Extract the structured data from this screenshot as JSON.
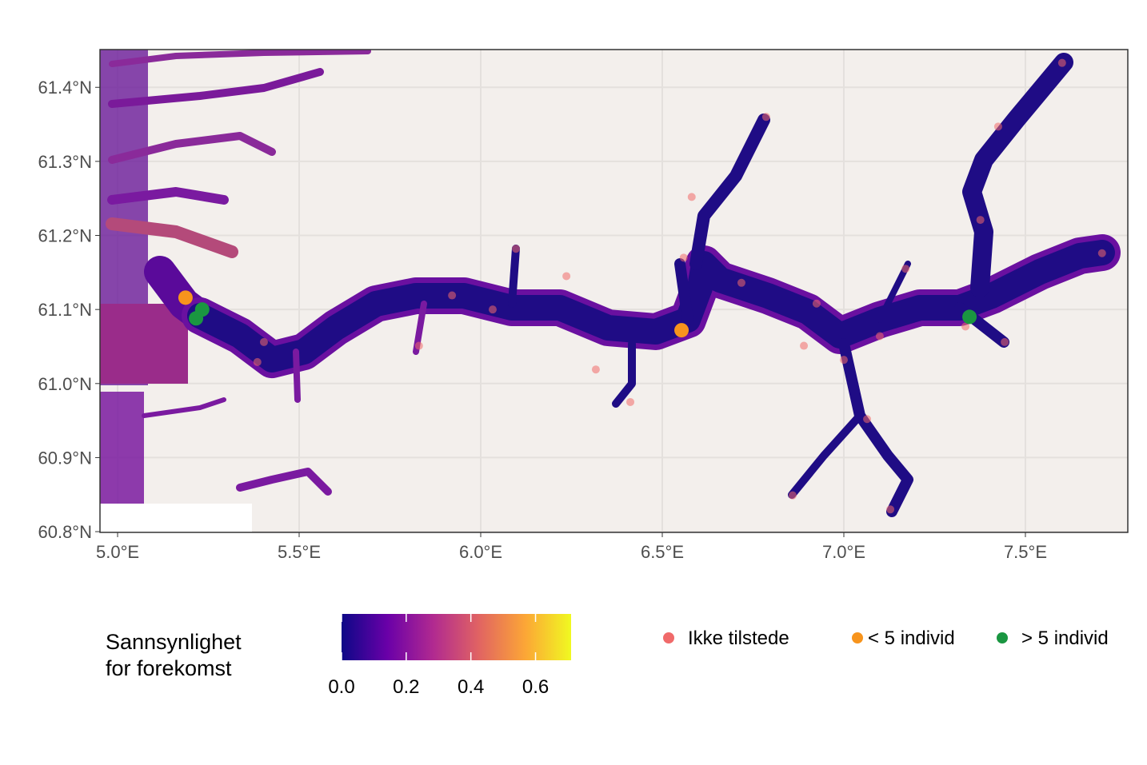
{
  "map": {
    "xlim": [
      4.9515,
      7.782
    ],
    "ylim": [
      60.799,
      61.451
    ],
    "xticks": [
      {
        "value": 5.0,
        "label": "5.0°E"
      },
      {
        "value": 5.5,
        "label": "5.5°E"
      },
      {
        "value": 6.0,
        "label": "6.0°E"
      },
      {
        "value": 6.5,
        "label": "6.5°E"
      },
      {
        "value": 7.0,
        "label": "7.0°E"
      },
      {
        "value": 7.5,
        "label": "7.5°E"
      }
    ],
    "yticks": [
      {
        "value": 60.8,
        "label": "60.8°N"
      },
      {
        "value": 60.9,
        "label": "60.9°N"
      },
      {
        "value": 61.0,
        "label": "61.0°N"
      },
      {
        "value": 61.1,
        "label": "61.1°N"
      },
      {
        "value": 61.2,
        "label": "61.2°N"
      },
      {
        "value": 61.3,
        "label": "61.3°N"
      },
      {
        "value": 61.4,
        "label": "61.4°N"
      }
    ],
    "grid": true,
    "colorbar": {
      "title_lines": [
        "Sannsynlighet",
        "for forekomst"
      ],
      "lim": [
        0,
        0.71
      ],
      "ticks": [
        {
          "value": 0,
          "label": "0.0"
        },
        0.2,
        0.4,
        0.6
      ],
      "colors": [
        "#0d0887",
        "#6a00a8",
        "#b12a90",
        "#e16462",
        "#fca636",
        "#f0f921"
      ]
    },
    "legend": [
      {
        "name": "Ikke tilstede",
        "color": "#f06a6a",
        "points": [
          [
            7.601,
            61.433
          ],
          [
            6.786,
            61.36
          ],
          [
            7.425,
            61.347
          ],
          [
            6.581,
            61.252
          ],
          [
            6.559,
            61.17
          ],
          [
            6.097,
            61.182
          ],
          [
            7.711,
            61.176
          ],
          [
            7.17,
            61.155
          ],
          [
            6.718,
            61.136
          ],
          [
            5.921,
            61.119
          ],
          [
            6.033,
            61.1
          ],
          [
            6.236,
            61.145
          ],
          [
            6.925,
            61.108
          ],
          [
            7.0,
            61.032
          ],
          [
            7.064,
            60.952
          ],
          [
            7.128,
            60.83
          ],
          [
            6.859,
            60.849
          ],
          [
            6.412,
            60.975
          ],
          [
            6.317,
            61.019
          ],
          [
            5.385,
            61.029
          ],
          [
            5.83,
            61.051
          ],
          [
            7.376,
            61.221
          ],
          [
            7.335,
            61.077
          ],
          [
            7.443,
            61.056
          ],
          [
            6.89,
            61.051
          ],
          [
            7.099,
            61.064
          ],
          [
            5.403,
            61.056
          ]
        ]
      },
      {
        "name": "< 5 individ",
        "color": "#f7941d",
        "points": [
          [
            5.187,
            61.116
          ],
          [
            6.553,
            61.072
          ]
        ]
      },
      {
        "name": "> 5 individ",
        "color": "#1a9641",
        "points": [
          [
            5.233,
            61.1
          ],
          [
            5.216,
            61.088
          ],
          [
            7.346,
            61.09
          ]
        ]
      }
    ]
  }
}
